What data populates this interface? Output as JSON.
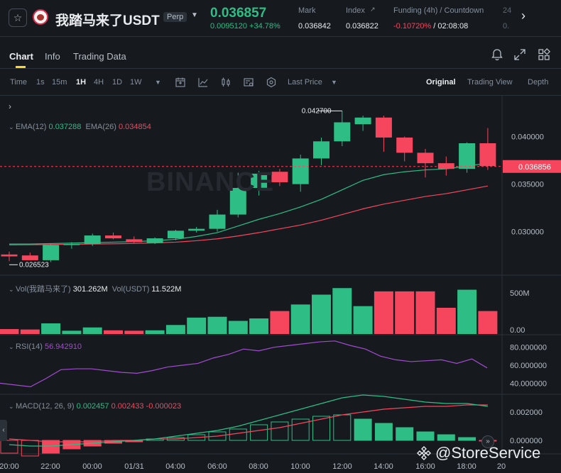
{
  "header": {
    "pair": "我踏马来了USDT",
    "contract_badge": "Perp",
    "last_price": "0.036857",
    "change": "0.0095120 +34.78%",
    "stats": [
      {
        "label": "Mark",
        "value": "0.036842",
        "color": "#eaecef"
      },
      {
        "label": "Index",
        "value": "0.036822",
        "color": "#eaecef"
      },
      {
        "label": "Funding (4h) / Countdown",
        "value_neg": "-0.10720%",
        "value_rest": "/ 02:08:08"
      },
      {
        "label": "24",
        "value": "0."
      }
    ]
  },
  "tabs": [
    "Chart",
    "Info",
    "Trading Data"
  ],
  "toolbar": {
    "intervals": [
      "Time",
      "1s",
      "15m",
      "1H",
      "4H",
      "1D",
      "1W"
    ],
    "active_interval": "1H",
    "price_source": "Last Price",
    "views": [
      "Original",
      "Trading View",
      "Depth"
    ],
    "active_view": "Original"
  },
  "indicators": {
    "ema": {
      "label12": "EMA(12)",
      "value12": "0.037288",
      "label26": "EMA(26)",
      "value26": "0.034854"
    },
    "vol": {
      "label1": "Vol(我踏马来了)",
      "value1": "301.262M",
      "label2": "Vol(USDT)",
      "value2": "11.522M"
    },
    "rsi": {
      "label": "RSI(14)",
      "value": "56.942910"
    },
    "macd": {
      "label": "MACD(12, 26, 9)",
      "v1": "0.002457",
      "v2": "0.002433",
      "v3": "-0.000023"
    }
  },
  "watermark": "BINANCE",
  "footer_watermark": "@StoreService",
  "colors": {
    "up": "#2ebd85",
    "down": "#f6465d",
    "accent": "#fcd535"
  },
  "chart_data": {
    "type": "candlestick",
    "x_labels": [
      "20:00",
      "22:00",
      "00:00",
      "01/31",
      "04:00",
      "06:00",
      "08:00",
      "10:00",
      "12:00",
      "14:00",
      "16:00",
      "18:00",
      "20"
    ],
    "price_axis": [
      "0.040000",
      "0.035000",
      "0.030000"
    ],
    "current_price_label": "0.036856",
    "high_label": "0.042700",
    "low_label": "0.026523",
    "candles": [
      {
        "o": 0.0276,
        "h": 0.0279,
        "l": 0.0269,
        "c": 0.0274
      },
      {
        "o": 0.0275,
        "h": 0.0278,
        "l": 0.027,
        "c": 0.027
      },
      {
        "o": 0.027,
        "h": 0.0287,
        "l": 0.0268,
        "c": 0.0286
      },
      {
        "o": 0.0286,
        "h": 0.0289,
        "l": 0.0282,
        "c": 0.0287
      },
      {
        "o": 0.0287,
        "h": 0.0298,
        "l": 0.0285,
        "c": 0.0296
      },
      {
        "o": 0.0296,
        "h": 0.0299,
        "l": 0.0292,
        "c": 0.0293
      },
      {
        "o": 0.0292,
        "h": 0.0295,
        "l": 0.0288,
        "c": 0.0289
      },
      {
        "o": 0.0288,
        "h": 0.0294,
        "l": 0.0287,
        "c": 0.0293
      },
      {
        "o": 0.0293,
        "h": 0.0302,
        "l": 0.0291,
        "c": 0.0301
      },
      {
        "o": 0.0301,
        "h": 0.0305,
        "l": 0.0299,
        "c": 0.0303
      },
      {
        "o": 0.0303,
        "h": 0.0323,
        "l": 0.03,
        "c": 0.0318
      },
      {
        "o": 0.0318,
        "h": 0.0362,
        "l": 0.0315,
        "c": 0.0346
      },
      {
        "o": 0.0346,
        "h": 0.0364,
        "l": 0.0338,
        "c": 0.0361
      },
      {
        "o": 0.0363,
        "h": 0.0366,
        "l": 0.0348,
        "c": 0.0352
      },
      {
        "o": 0.035,
        "h": 0.0381,
        "l": 0.0342,
        "c": 0.0377
      },
      {
        "o": 0.0377,
        "h": 0.0399,
        "l": 0.037,
        "c": 0.0395
      },
      {
        "o": 0.0395,
        "h": 0.0427,
        "l": 0.039,
        "c": 0.0415
      },
      {
        "o": 0.0413,
        "h": 0.0422,
        "l": 0.0406,
        "c": 0.042
      },
      {
        "o": 0.042,
        "h": 0.0422,
        "l": 0.0384,
        "c": 0.0399
      },
      {
        "o": 0.0399,
        "h": 0.04,
        "l": 0.0374,
        "c": 0.0383
      },
      {
        "o": 0.0383,
        "h": 0.0387,
        "l": 0.0357,
        "c": 0.0372
      },
      {
        "o": 0.0372,
        "h": 0.0379,
        "l": 0.0359,
        "c": 0.0366
      },
      {
        "o": 0.0366,
        "h": 0.0394,
        "l": 0.0362,
        "c": 0.0393
      },
      {
        "o": 0.0393,
        "h": 0.0409,
        "l": 0.0365,
        "c": 0.0369
      }
    ],
    "ema12": [
      0.0287,
      0.0287,
      0.02875,
      0.0288,
      0.02885,
      0.0289,
      0.02895,
      0.02905,
      0.0292,
      0.0295,
      0.0299,
      0.0306,
      0.0313,
      0.0319,
      0.0326,
      0.0334,
      0.0344,
      0.0354,
      0.036,
      0.0363,
      0.0365,
      0.0366,
      0.0369,
      0.0372
    ],
    "ema26": [
      0.0286,
      0.02862,
      0.02865,
      0.02867,
      0.0287,
      0.02873,
      0.02876,
      0.02882,
      0.0289,
      0.02905,
      0.02925,
      0.02955,
      0.0299,
      0.0303,
      0.0307,
      0.0312,
      0.0318,
      0.0324,
      0.0329,
      0.0333,
      0.0337,
      0.034,
      0.0344,
      0.0348
    ],
    "volume_axis": [
      "500M",
      "0.00"
    ],
    "volume": [
      60,
      55,
      130,
      40,
      80,
      45,
      40,
      45,
      110,
      200,
      210,
      160,
      190,
      280,
      360,
      480,
      560,
      340,
      520,
      520,
      520,
      320,
      540,
      280
    ],
    "rsi_axis": [
      "80.000000",
      "60.000000",
      "40.000000"
    ],
    "rsi": [
      40,
      38,
      36,
      45,
      55,
      56,
      56,
      54,
      52,
      51,
      54,
      58,
      60,
      62,
      68,
      72,
      78,
      76,
      80,
      82,
      84,
      86,
      87,
      82,
      78,
      70,
      66,
      64,
      65,
      66,
      62,
      67,
      57
    ],
    "macd_axis": [
      "0.002000",
      "0.000000"
    ],
    "macd_hist": [
      -0.0009,
      -0.0011,
      -0.0009,
      -0.0006,
      -0.0004,
      -0.0002,
      -0.0001,
      0.0001,
      0.0002,
      0.0004,
      0.0006,
      0.0008,
      0.0011,
      0.0013,
      0.0015,
      0.0017,
      0.0018,
      0.0015,
      0.0012,
      0.0009,
      0.0006,
      0.0004,
      0.0002,
      -2e-05
    ],
    "macd_dif": [
      -0.0003,
      -0.0004,
      -0.0004,
      -0.0003,
      -0.0002,
      -0.0001,
      0.0,
      0.0001,
      0.0003,
      0.0005,
      0.0007,
      0.001,
      0.0014,
      0.0018,
      0.0022,
      0.0026,
      0.003,
      0.0032,
      0.0031,
      0.0029,
      0.0027,
      0.0026,
      0.0026,
      0.0024
    ],
    "macd_dea": [
      0.0001,
      0.0,
      -0.0001,
      -0.0001,
      -0.0001,
      0.0,
      0.0,
      0.0001,
      0.0001,
      0.0002,
      0.0003,
      0.0005,
      0.0007,
      0.0009,
      0.0012,
      0.0015,
      0.0018,
      0.002,
      0.0022,
      0.0023,
      0.0024,
      0.0024,
      0.0025,
      0.0025
    ]
  }
}
